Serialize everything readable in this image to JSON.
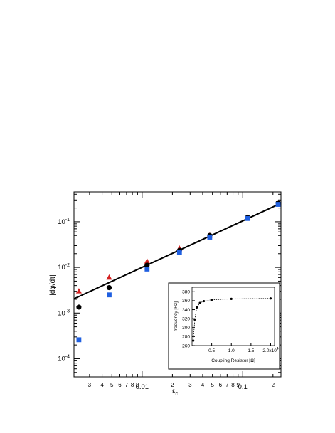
{
  "chart_data": [
    {
      "type": "scatter",
      "scale": "log-log",
      "xlabel": "ε",
      "xlabel_sub": "c",
      "ylabel": "|dφ/dτ|",
      "xlim": [
        0.0021,
        0.24
      ],
      "ylim": [
        4e-05,
        0.45
      ],
      "x_major_ticks": [
        {
          "v": 0.01,
          "label": "0.01"
        },
        {
          "v": 0.1,
          "label": "0.1"
        }
      ],
      "x_minor_labels": [
        {
          "v": 0.003,
          "label": "3"
        },
        {
          "v": 0.004,
          "label": "4"
        },
        {
          "v": 0.005,
          "label": "5"
        },
        {
          "v": 0.006,
          "label": "6"
        },
        {
          "v": 0.007,
          "label": "7"
        },
        {
          "v": 0.008,
          "label": "8"
        },
        {
          "v": 0.009,
          "label": "9"
        },
        {
          "v": 0.02,
          "label": "2"
        },
        {
          "v": 0.03,
          "label": "3"
        },
        {
          "v": 0.04,
          "label": "4"
        },
        {
          "v": 0.05,
          "label": "5"
        },
        {
          "v": 0.06,
          "label": "6"
        },
        {
          "v": 0.07,
          "label": "7"
        },
        {
          "v": 0.08,
          "label": "8"
        },
        {
          "v": 0.09,
          "label": "9"
        },
        {
          "v": 0.2,
          "label": "2"
        }
      ],
      "y_major_ticks": [
        {
          "v": 0.0001,
          "base": "10",
          "exp": "-4"
        },
        {
          "v": 0.001,
          "base": "10",
          "exp": "-3"
        },
        {
          "v": 0.01,
          "base": "10",
          "exp": "-2"
        },
        {
          "v": 0.1,
          "base": "10",
          "exp": "-1"
        }
      ],
      "series": [
        {
          "marker": "circle",
          "color": "#000000",
          "x": [
            0.00235,
            0.0047,
            0.0112,
            0.0235,
            0.047,
            0.112,
            0.225
          ],
          "y": [
            0.00135,
            0.0036,
            0.0112,
            0.0235,
            0.05,
            0.125,
            0.26
          ]
        },
        {
          "marker": "square",
          "color": "#1f5fe0",
          "x": [
            0.00235,
            0.0047,
            0.0112,
            0.0235,
            0.047,
            0.112,
            0.225
          ],
          "y": [
            0.00026,
            0.0025,
            0.0092,
            0.021,
            0.046,
            0.118,
            0.24
          ]
        },
        {
          "marker": "triangle",
          "color": "#d42020",
          "x": [
            0.00235,
            0.0047,
            0.0112,
            0.0235,
            0.047,
            0.112,
            0.225
          ],
          "y": [
            0.003,
            0.006,
            0.0135,
            0.026,
            0.05,
            0.125,
            0.255
          ]
        }
      ],
      "fit_line": {
        "color": "#000000",
        "x": [
          0.0021,
          0.24
        ],
        "y": [
          0.00205,
          0.255
        ]
      }
    },
    {
      "type": "line",
      "role": "inset",
      "xlabel": "Coupling Resistor [Ω]",
      "ylabel": "frequency [Hz]",
      "xlim": [
        0,
        21000
      ],
      "ylim": [
        260,
        390
      ],
      "x_ticks": [
        {
          "v": 5000,
          "label": "0.5"
        },
        {
          "v": 10000,
          "label": "1.0"
        },
        {
          "v": 15000,
          "label": "1.5"
        },
        {
          "v": 20000,
          "label": "2.0x10",
          "exp": "4"
        }
      ],
      "y_ticks": [
        260,
        280,
        300,
        320,
        340,
        360,
        380
      ],
      "x": [
        300,
        700,
        1200,
        2000,
        3000,
        5000,
        10000,
        20000
      ],
      "y": [
        271,
        318,
        345,
        355,
        359,
        362,
        364,
        365
      ],
      "color": "#000000"
    }
  ]
}
